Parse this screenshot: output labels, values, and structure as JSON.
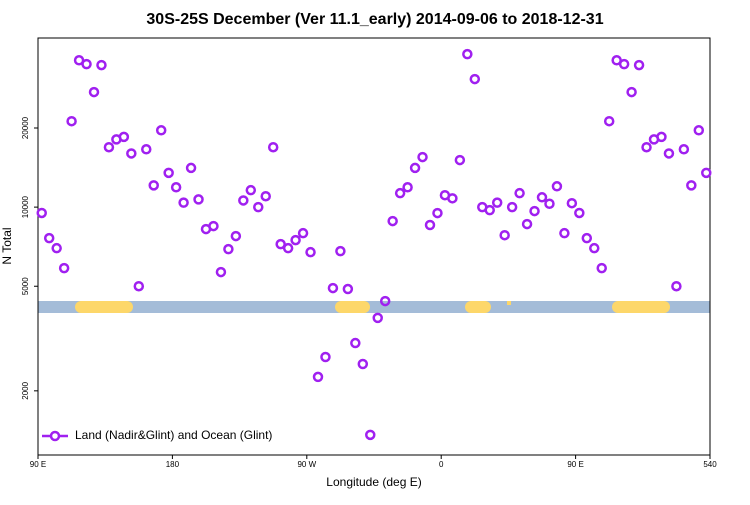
{
  "chart_data": {
    "type": "scatter",
    "title": "30S-25S December (Ver 11.1_early)   2014-09-06 to 2018-12-31",
    "xlabel": "Longitude (deg E)",
    "ylabel": "N Total",
    "yscale": "log",
    "legend": "lower left",
    "xlim": [
      90,
      540
    ],
    "xticks": [
      {
        "value": 90,
        "label": "90 E"
      },
      180,
      {
        "value": 270,
        "label": "90 W"
      },
      {
        "value": 360,
        "label": "0"
      },
      {
        "value": 450,
        "label": "90 E"
      },
      540
    ],
    "ylim": [
      1140,
      44000
    ],
    "yticks": [
      2000,
      5000,
      10000,
      20000
    ],
    "x": [
      92.5,
      97.5,
      102.5,
      107.5,
      112.5,
      117.5,
      122.5,
      127.5,
      132.5,
      137.5,
      142.5,
      147.5,
      152.5,
      157.5,
      162.5,
      167.5,
      172.5,
      177.5,
      182.5,
      187.5,
      192.5,
      197.5,
      202.5,
      207.5,
      212.5,
      217.5,
      222.5,
      227.5,
      232.5,
      237.5,
      242.5,
      247.5,
      252.5,
      257.5,
      262.5,
      267.5,
      272.5,
      277.5,
      282.5,
      287.5,
      292.5,
      297.5,
      302.5,
      307.5,
      312.5,
      317.5,
      322.5,
      327.5,
      332.5,
      337.5,
      342.5,
      347.5,
      352.5,
      357.5,
      362.5,
      367.5,
      372.5,
      377.5,
      382.5,
      387.5,
      392.5,
      397.5,
      402.5,
      407.5,
      412.5,
      417.5,
      422.5,
      427.5,
      432.5,
      437.5,
      442.5,
      447.5,
      452.5,
      457.5,
      462.5,
      467.5,
      472.5,
      477.5,
      482.5,
      487.5,
      492.5,
      497.5,
      502.5,
      507.5,
      512.5,
      517.5,
      522.5,
      527.5,
      532.5,
      537.5
    ],
    "series": [
      {
        "name": "Land (Nadir&Glint) and Ocean (Glint)",
        "color": "#a020f0",
        "values": [
          9500,
          7620,
          6980,
          5860,
          21230,
          36200,
          35000,
          27400,
          34700,
          16900,
          18100,
          18500,
          16000,
          5000,
          16600,
          12100,
          19600,
          13500,
          11900,
          10400,
          14100,
          10700,
          8250,
          8470,
          5660,
          6920,
          7760,
          10600,
          11600,
          10000,
          11000,
          16900,
          7230,
          6980,
          7490,
          7960,
          6740,
          2260,
          2690,
          4920,
          6800,
          4880,
          3040,
          2530,
          1360,
          3790,
          4390,
          8850,
          11300,
          11900,
          14100,
          15500,
          8550,
          9490,
          11100,
          10800,
          15100,
          38200,
          30700,
          10000,
          9740,
          10400,
          7820,
          10000,
          11300,
          8620,
          9660,
          10900,
          10300,
          12000,
          7960,
          10350,
          9500,
          7620,
          6980,
          5860,
          21230,
          36200,
          35000,
          27400,
          34700,
          16900,
          18100,
          18500,
          16000,
          5000,
          16600,
          12100,
          19600,
          13500
        ]
      }
    ]
  }
}
